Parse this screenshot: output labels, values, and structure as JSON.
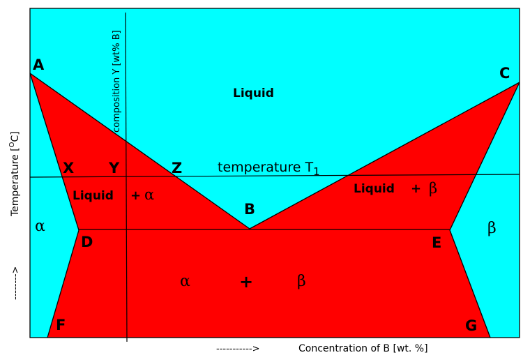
{
  "diagram": {
    "points": {
      "A": "A",
      "B": "B",
      "C": "C",
      "D": "D",
      "E": "E",
      "F": "F",
      "G": "G",
      "X": "X",
      "Y": "Y",
      "Z": "Z"
    },
    "regions": {
      "liquid": "Liquid",
      "liquid_alpha_word": "Liquid",
      "liquid_alpha_plus": "+",
      "liquid_alpha_symbol": "α",
      "liquid_beta_word": "Liquid",
      "liquid_beta_plus": "+",
      "liquid_beta_symbol": "β",
      "alpha": "α",
      "beta": "β",
      "alpha_beta_alpha": "α",
      "alpha_beta_plus": "+",
      "alpha_beta_beta": "β"
    },
    "temperature_line": {
      "label": "temperature T",
      "subscript": "1"
    },
    "composition_line": {
      "label": "composition Y [wt% B]"
    },
    "axes": {
      "y_label_prefix": "Temperature [",
      "y_label_sup": "O",
      "y_label_suffix": "C]",
      "y_arrow": "-------->",
      "x_arrow": "----------->",
      "x_label": "Concentration of B [wt. %]"
    },
    "colors": {
      "liquid_region": "#00ffff",
      "two_phase_region": "#ff0000",
      "lines": "#000000"
    }
  }
}
